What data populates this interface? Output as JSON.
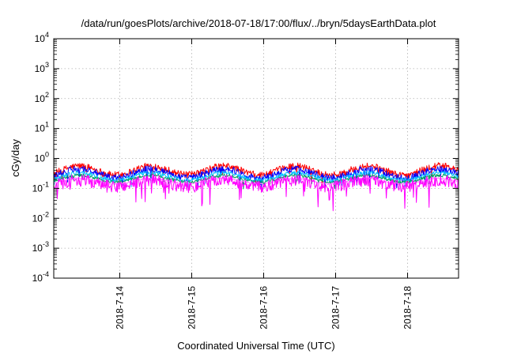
{
  "chart_data": {
    "type": "line",
    "title": "/data/run/goesPlots/archive/2018-07-18/17:00/flux/../bryn/5daysEarthData.plot",
    "xlabel": "Coordinated Universal Time (UTC)",
    "ylabel": "cGy/day",
    "yscale": "log",
    "ylim": [
      0.0001,
      10000
    ],
    "y_ticks": [
      {
        "value": 10000,
        "base": "10",
        "exp": "4"
      },
      {
        "value": 1000,
        "base": "10",
        "exp": "3"
      },
      {
        "value": 100,
        "base": "10",
        "exp": "2"
      },
      {
        "value": 10,
        "base": "10",
        "exp": "1"
      },
      {
        "value": 1,
        "base": "10",
        "exp": "0"
      },
      {
        "value": 0.1,
        "base": "10",
        "exp": "-1"
      },
      {
        "value": 0.01,
        "base": "10",
        "exp": "-2"
      },
      {
        "value": 0.001,
        "base": "10",
        "exp": "-3"
      },
      {
        "value": 0.0001,
        "base": "10",
        "exp": "-4"
      }
    ],
    "xlim": [
      "2018-07-13T02:00",
      "2018-07-18T17:00"
    ],
    "x_ticks": [
      {
        "value": "2018-07-14T00:00",
        "label": "2018-7-14"
      },
      {
        "value": "2018-07-15T00:00",
        "label": "2018-7-15"
      },
      {
        "value": "2018-07-16T00:00",
        "label": "2018-7-16"
      },
      {
        "value": "2018-07-17T00:00",
        "label": "2018-7-17"
      },
      {
        "value": "2018-07-18T00:00",
        "label": "2018-7-18"
      }
    ],
    "grid": true,
    "series": [
      {
        "color": "#ff0000",
        "base": 0.4,
        "amp": 0.3,
        "noise": 0.22,
        "dip": 0.45
      },
      {
        "color": "#0000ff",
        "base": 0.32,
        "amp": 0.3,
        "noise": 0.22,
        "dip": 0.45
      },
      {
        "color": "#00c0ff",
        "base": 0.25,
        "amp": 0.25,
        "noise": 0.14,
        "dip": 0.35
      },
      {
        "color": "#00a060",
        "base": 0.21,
        "amp": 0.22,
        "noise": 0.1,
        "dip": 0.3
      },
      {
        "color": "#ff80ff",
        "base": 0.175,
        "amp": 0.18,
        "noise": 0.06,
        "dip": 0.25
      },
      {
        "color": "#ff00ff",
        "base": 0.145,
        "amp": 0.22,
        "noise": 0.4,
        "dip": 0.75
      }
    ]
  }
}
